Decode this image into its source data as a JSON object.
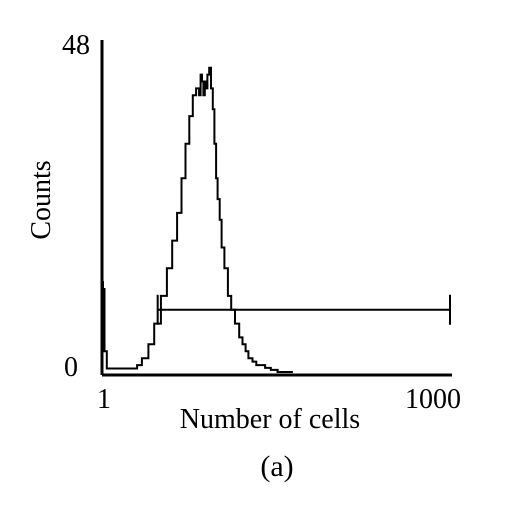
{
  "chart_data": {
    "type": "histogram",
    "xlabel": "Number of cells",
    "ylabel": "Counts",
    "caption": "(a)",
    "x_scale": "log",
    "xlim": [
      1,
      1000
    ],
    "ylim": [
      0,
      48
    ],
    "x_tick_labels": [
      "1",
      "1000"
    ],
    "y_tick_labels": [
      "48",
      "0"
    ],
    "grid": false,
    "legend": "none",
    "line_color": "#000000",
    "series": [
      {
        "x": [
          1.0,
          1.02,
          1.05,
          1.1,
          1.3,
          1.5,
          1.7,
          2.0,
          2.2,
          2.5,
          2.8,
          3.2,
          3.6,
          4.0,
          4.4,
          4.8,
          5.2,
          5.6,
          6.0,
          6.4,
          6.8,
          7.0,
          7.2,
          7.4,
          7.6,
          7.8,
          8.0,
          8.3,
          8.6,
          8.9,
          9.2,
          9.5,
          9.8,
          10.2,
          10.6,
          11.2,
          12.0,
          12.8,
          13.8,
          15.0,
          16.0,
          17.0,
          18.0,
          19.5,
          21.0,
          23.0,
          25.0,
          28.0,
          32.0,
          36.0,
          40.0
        ],
        "counts": [
          13,
          12,
          3,
          0.5,
          0.5,
          0.5,
          0.5,
          1,
          2,
          4,
          7,
          11,
          15,
          19,
          23,
          28,
          33,
          37,
          40,
          41,
          40,
          43,
          42,
          40,
          42,
          41,
          43,
          44,
          41,
          38,
          33,
          28,
          25,
          22,
          18,
          15,
          11,
          9,
          7,
          5,
          4,
          3,
          2,
          1.5,
          1,
          1,
          0.6,
          0.3,
          0,
          0,
          0
        ]
      }
    ],
    "gate": {
      "x_start": 3.0,
      "x_end": 1000,
      "y": 9
    }
  }
}
